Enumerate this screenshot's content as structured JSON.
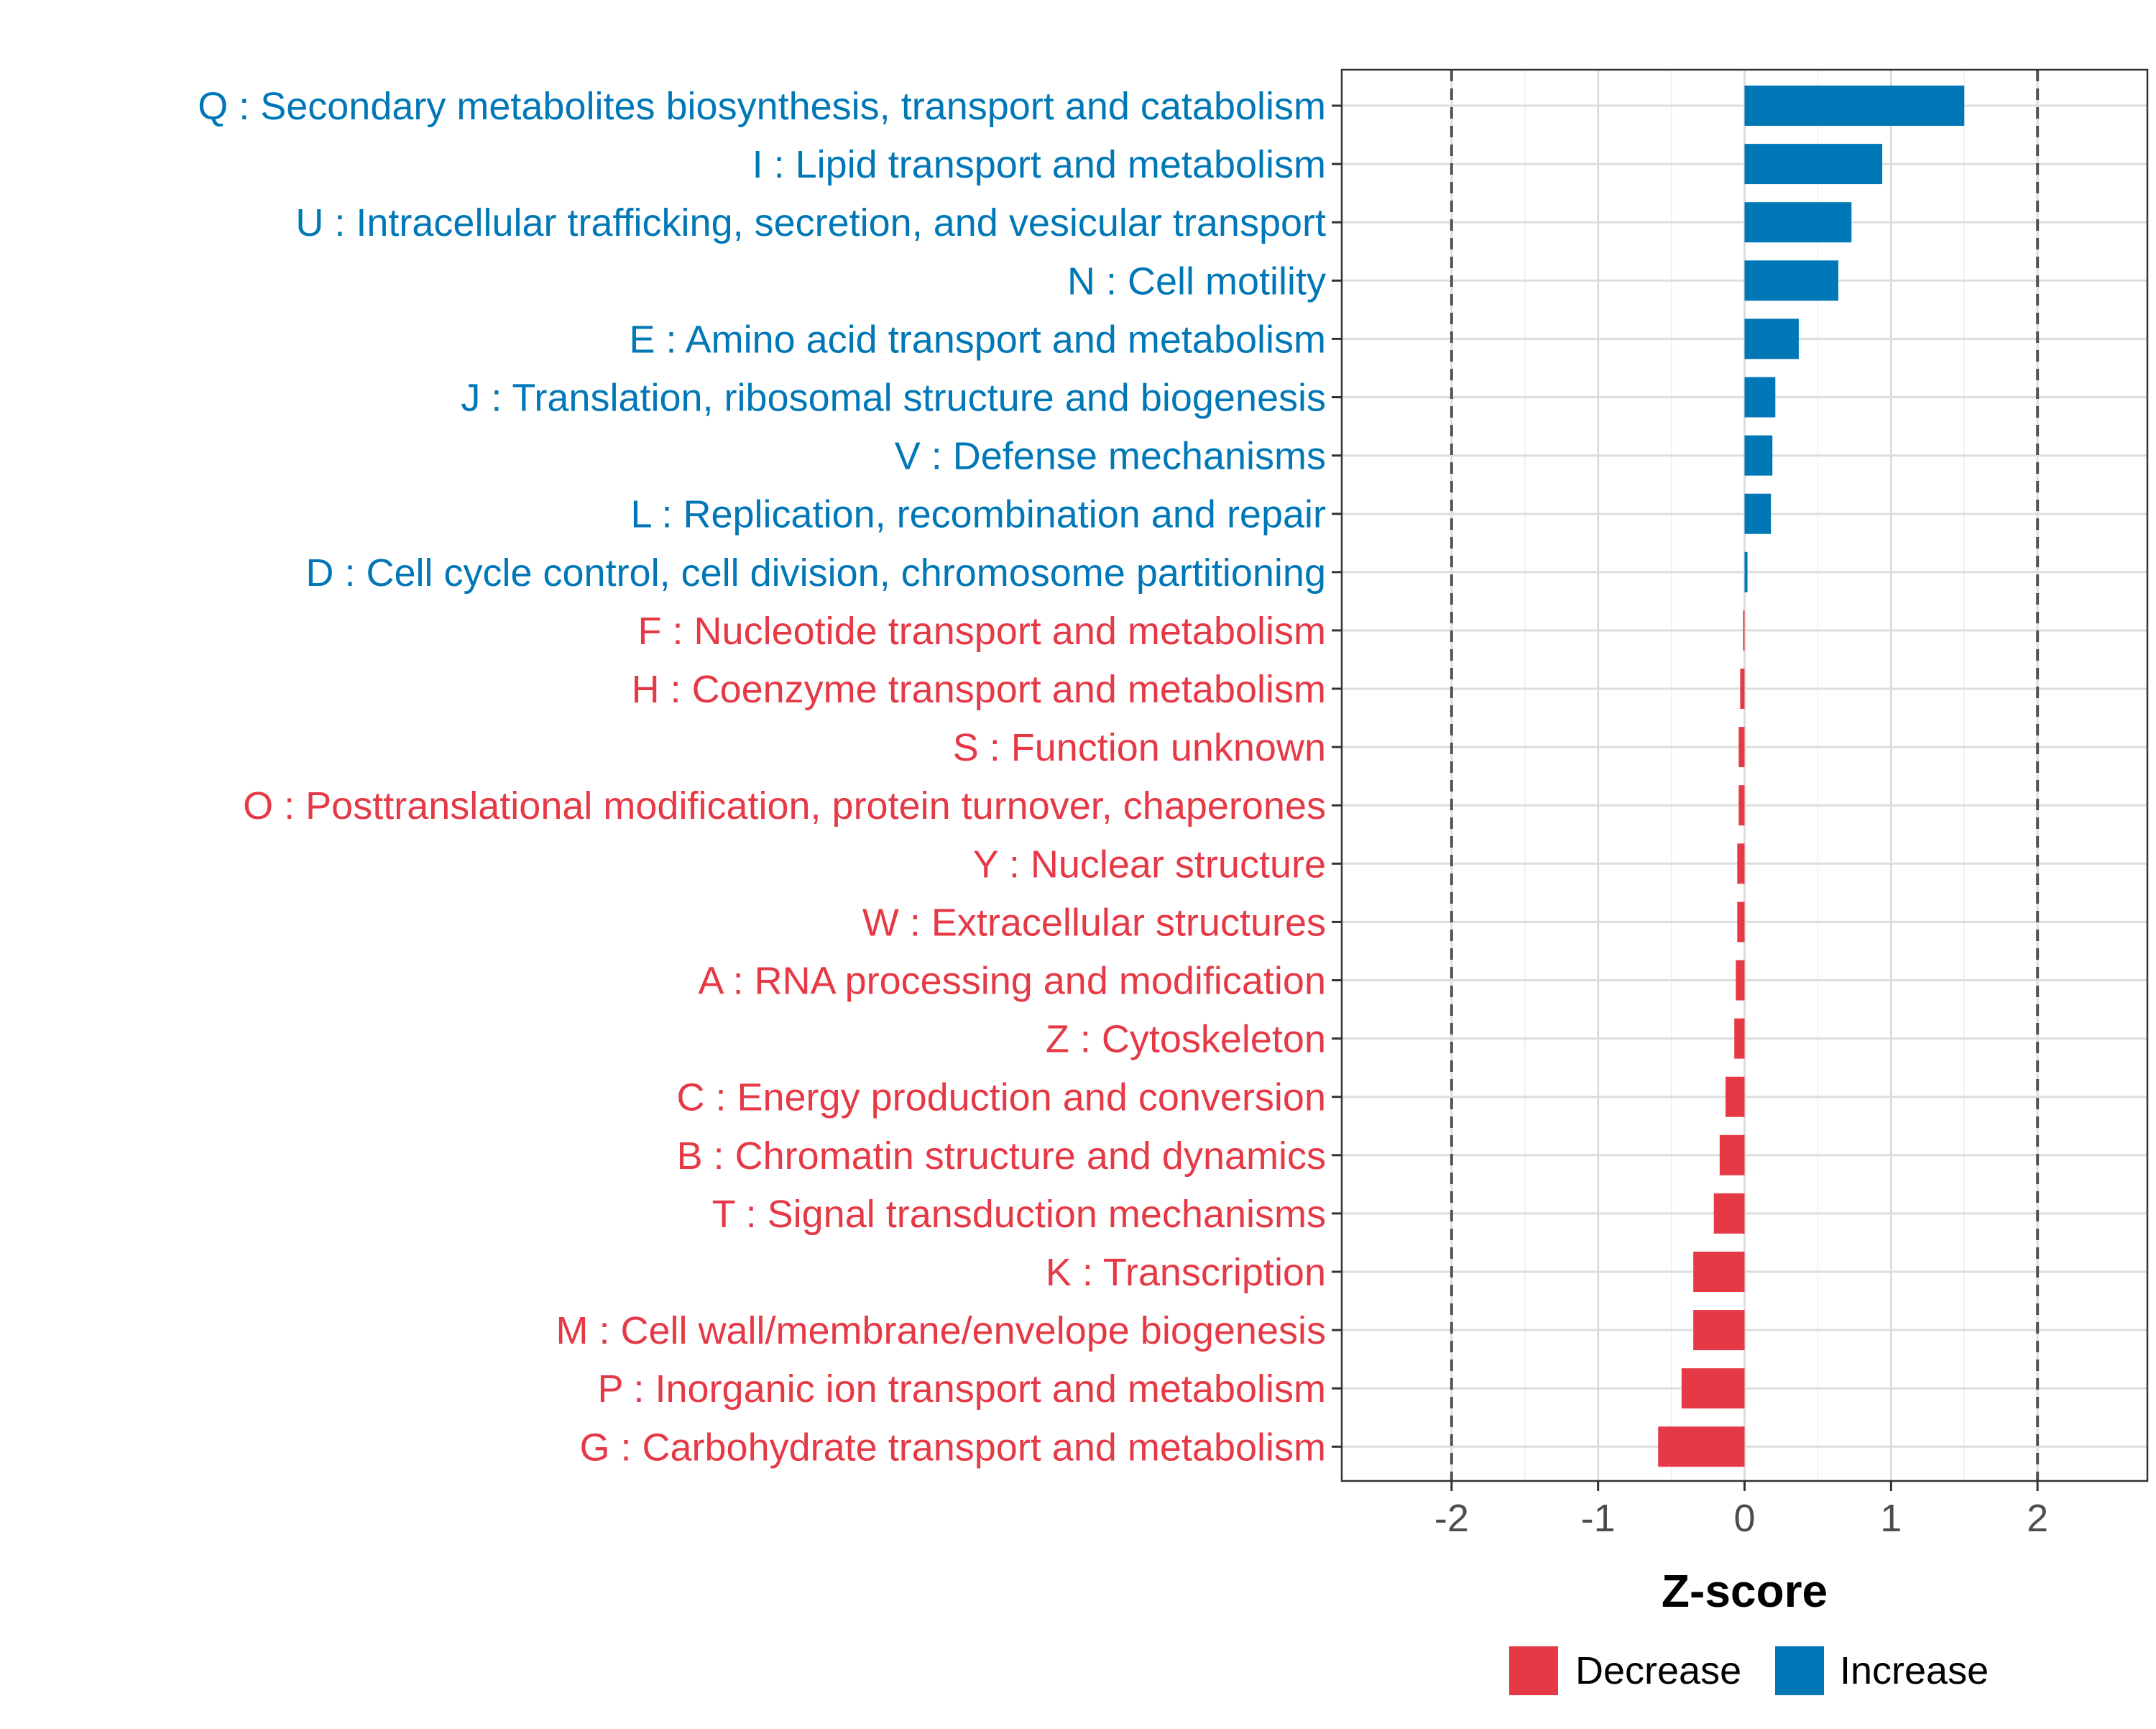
{
  "chart_data": {
    "type": "bar",
    "orientation": "horizontal",
    "title": "",
    "xlabel": "Z-score",
    "ylabel": "",
    "xlim": [
      -2.75,
      2.75
    ],
    "xticks": [
      -2,
      -1,
      0,
      1,
      2
    ],
    "xtick_labels": [
      "-2",
      "-1",
      "0",
      "1",
      "2"
    ],
    "threshold_lines": [
      -2,
      2
    ],
    "grid": true,
    "legend_position": "bottom",
    "colors": {
      "increase": "#0077B6",
      "decrease": "#E63946",
      "grid": "#DDDDDD",
      "axis_text": "#4D4D4D",
      "threshold": "#555555"
    },
    "legend": [
      {
        "label": "Decrease",
        "color": "#E63946"
      },
      {
        "label": "Increase",
        "color": "#0077B6"
      }
    ],
    "categories": [
      "Q : Secondary metabolites biosynthesis, transport and catabolism",
      "I : Lipid transport and metabolism",
      "U : Intracellular trafficking, secretion, and vesicular transport",
      "N : Cell motility",
      "E : Amino acid transport and metabolism",
      "J : Translation, ribosomal structure and biogenesis",
      "V : Defense mechanisms",
      "L : Replication, recombination and repair",
      "D : Cell cycle control, cell division, chromosome partitioning",
      "F : Nucleotide transport and metabolism",
      "H : Coenzyme transport and metabolism",
      "S : Function unknown",
      "O : Posttranslational modification, protein turnover, chaperones",
      "Y : Nuclear structure",
      "W : Extracellular structures",
      "A : RNA processing and modification",
      "Z : Cytoskeleton",
      "C : Energy production and conversion",
      "B : Chromatin structure and dynamics",
      "T : Signal transduction mechanisms",
      "K : Transcription",
      "M : Cell wall/membrane/envelope biogenesis",
      "P : Inorganic ion transport and metabolism",
      "G : Carbohydrate transport and metabolism"
    ],
    "values": [
      1.5,
      0.94,
      0.73,
      0.64,
      0.37,
      0.21,
      0.19,
      0.18,
      0.02,
      -0.01,
      -0.03,
      -0.04,
      -0.04,
      -0.05,
      -0.05,
      -0.06,
      -0.07,
      -0.13,
      -0.17,
      -0.21,
      -0.35,
      -0.35,
      -0.43,
      -0.59
    ],
    "direction": [
      "Increase",
      "Increase",
      "Increase",
      "Increase",
      "Increase",
      "Increase",
      "Increase",
      "Increase",
      "Increase",
      "Decrease",
      "Decrease",
      "Decrease",
      "Decrease",
      "Decrease",
      "Decrease",
      "Decrease",
      "Decrease",
      "Decrease",
      "Decrease",
      "Decrease",
      "Decrease",
      "Decrease",
      "Decrease",
      "Decrease"
    ]
  }
}
